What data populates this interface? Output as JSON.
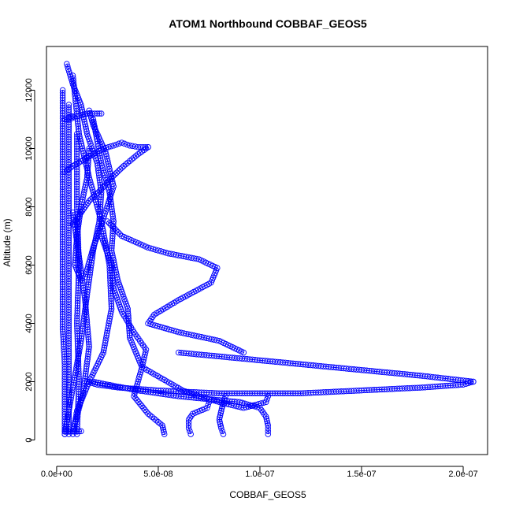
{
  "chart_data": {
    "type": "scatter",
    "title": "ATOM1 Northbound COBBAF_GEOS5",
    "xlabel": "COBBAF_GEOS5",
    "ylabel": "Altitude (m)",
    "xlim": [
      -5e-09,
      2.12e-07
    ],
    "ylim": [
      -500,
      13500
    ],
    "x_ticks": [
      {
        "value": 0,
        "label": "0.0e+00"
      },
      {
        "value": 5e-08,
        "label": "5.0e-08"
      },
      {
        "value": 1e-07,
        "label": "1.0e-07"
      },
      {
        "value": 1.5e-07,
        "label": "1.5e-07"
      },
      {
        "value": 2e-07,
        "label": "2.0e-07"
      }
    ],
    "y_ticks": [
      {
        "value": 0,
        "label": "0"
      },
      {
        "value": 2000,
        "label": "2000"
      },
      {
        "value": 4000,
        "label": "4000"
      },
      {
        "value": 6000,
        "label": "6000"
      },
      {
        "value": 8000,
        "label": "8000"
      },
      {
        "value": 10000,
        "label": "10000"
      },
      {
        "value": 12000,
        "label": "12000"
      }
    ],
    "grid": false,
    "legend": "none",
    "marker": "open-circle",
    "color": "#0000ff",
    "series": [
      {
        "x": [
          4e-09,
          4e-09,
          4e-09,
          3e-09,
          3e-09,
          3e-09,
          3e-09,
          3e-09,
          3e-09,
          3e-09
        ],
        "y": [
          200,
          1400,
          2600,
          3800,
          5000,
          6200,
          7400,
          8600,
          9800,
          12000
        ]
      },
      {
        "x": [
          6e-09,
          6e-09,
          6e-09,
          6e-09,
          6e-09,
          6e-09,
          6e-09,
          6e-09
        ],
        "y": [
          200,
          1800,
          3400,
          5000,
          6600,
          8200,
          9800,
          11500
        ]
      },
      {
        "x": [
          1e-08,
          1.1e-08,
          1e-08,
          1.1e-08,
          1e-08,
          1e-08
        ],
        "y": [
          200,
          2000,
          4000,
          6000,
          8000,
          10500
        ]
      },
      {
        "x": [
          8e-09,
          1.3e-08,
          1.6e-08,
          1.4e-08,
          1.1e-08,
          8e-09
        ],
        "y": [
          300,
          1600,
          3200,
          4800,
          6300,
          7800
        ]
      },
      {
        "x": [
          4e-09,
          8e-09,
          1.2e-08,
          1.5e-08,
          1.8e-08,
          2.1e-08,
          2.2e-08,
          2e-08,
          1.5e-08,
          1.2e-08,
          8e-09,
          5e-09
        ],
        "y": [
          200,
          1800,
          3400,
          5000,
          6500,
          7500,
          8500,
          9500,
          10500,
          11500,
          12200,
          12900
        ]
      },
      {
        "x": [
          8e-09,
          1e-08,
          1.6e-08,
          2.3e-08,
          2.7e-08,
          2.6e-08,
          2.2e-08,
          1.6e-08,
          1.1e-08,
          8e-09
        ],
        "y": [
          200,
          1000,
          2000,
          3000,
          4500,
          6000,
          7500,
          9000,
          10500,
          12500
        ]
      },
      {
        "x": [
          5.3e-08,
          5.2e-08,
          4.5e-08,
          3.8e-08,
          4.2e-08,
          3.6e-08,
          3.5e-08,
          3e-08,
          2.7e-08,
          2.8e-08,
          2.6e-08,
          2.2e-08,
          1.8e-08
        ],
        "y": [
          200,
          500,
          900,
          1500,
          2500,
          3500,
          4500,
          5500,
          6500,
          7500,
          8500,
          9500,
          11000
        ]
      },
      {
        "x": [
          6.6e-08,
          6.5e-08,
          6.5e-08,
          6.7e-08,
          7.4e-08,
          7.5e-08
        ],
        "y": [
          200,
          400,
          700,
          900,
          1100,
          1300
        ]
      },
      {
        "x": [
          8.2e-08,
          8.1e-08,
          8e-08,
          8.1e-08,
          8.2e-08,
          8.3e-08
        ],
        "y": [
          200,
          400,
          700,
          1000,
          1300,
          1500
        ]
      },
      {
        "x": [
          1.04e-07,
          1.04e-07,
          1.03e-07,
          1e-07,
          9e-08,
          6e-08,
          4e-08,
          2.5e-08,
          1.8e-08
        ],
        "y": [
          200,
          500,
          800,
          1100,
          1300,
          1500,
          1700,
          1900,
          2000
        ]
      },
      {
        "x": [
          2.05e-07,
          2e-07,
          1.8e-07,
          1.5e-07,
          1.2e-07,
          8e-08,
          5e-08,
          3e-08,
          2e-08,
          1.5e-08
        ],
        "y": [
          2000,
          1900,
          1800,
          1700,
          1600,
          1600,
          1700,
          1800,
          1900,
          2000
        ]
      },
      {
        "x": [
          2.05e-07,
          1.8e-07,
          1.5e-07,
          1.2e-07,
          9e-08,
          6e-08
        ],
        "y": [
          2000,
          2200,
          2400,
          2600,
          2800,
          3000
        ]
      },
      {
        "x": [
          9.2e-08,
          8e-08,
          6e-08,
          4.5e-08,
          4.8e-08,
          6e-08,
          7.6e-08,
          7.9e-08,
          7e-08,
          5.5e-08,
          4.5e-08,
          3.2e-08,
          2.5e-08
        ],
        "y": [
          3000,
          3400,
          3700,
          4000,
          4300,
          4800,
          5400,
          5900,
          6200,
          6400,
          6600,
          7000,
          7500
        ]
      },
      {
        "x": [
          1.04e-07,
          1.03e-07,
          9.2e-08,
          8e-08,
          7e-08,
          6.2e-08,
          5.2e-08,
          4.2e-08,
          4.4e-08,
          3.8e-08,
          3.2e-08,
          2.8e-08,
          2.7e-08,
          2.2e-08
        ],
        "y": [
          1500,
          1300,
          1100,
          1300,
          1500,
          1700,
          2100,
          2500,
          3100,
          3700,
          4400,
          5200,
          6000,
          7000
        ]
      },
      {
        "x": [
          4e-09,
          8e-09,
          1.3e-08,
          1.8e-08,
          2.3e-08,
          2.8e-08,
          3.2e-08,
          3.6e-08,
          4e-08,
          4.5e-08
        ],
        "y": [
          9200,
          9400,
          9600,
          9800,
          10000,
          10100,
          10200,
          10100,
          10050,
          10050
        ]
      },
      {
        "x": [
          4.5e-08,
          4e-08,
          3.3e-08,
          2.7e-08,
          2.2e-08,
          1.6e-08,
          1.2e-08,
          8e-09
        ],
        "y": [
          10050,
          9800,
          9400,
          9000,
          8600,
          8200,
          7800,
          7400
        ]
      },
      {
        "x": [
          6e-09,
          1e-08,
          1.5e-08,
          2e-08,
          2.2e-08
        ],
        "y": [
          11000,
          11100,
          11200,
          11200,
          11200
        ]
      },
      {
        "x": [
          4e-09,
          5e-09,
          6e-09,
          7e-09,
          8e-09
        ],
        "y": [
          11000,
          11000,
          11050,
          11100,
          11100
        ]
      },
      {
        "x": [
          4e-09,
          6e-09,
          8e-09,
          1e-08,
          1.2e-08
        ],
        "y": [
          300,
          300,
          300,
          300,
          300
        ]
      },
      {
        "x": [
          1.2e-08,
          9e-09,
          1e-08,
          1.2e-08,
          1.5e-08,
          1.6e-08
        ],
        "y": [
          5500,
          6000,
          7000,
          8000,
          9000,
          10000
        ]
      },
      {
        "x": [
          1.6e-08,
          1.8e-08,
          2.4e-08,
          2.8e-08,
          2.3e-08,
          1.8e-08,
          1.4e-08
        ],
        "y": [
          11300,
          10800,
          9900,
          8700,
          7600,
          6600,
          5600
        ]
      }
    ]
  }
}
